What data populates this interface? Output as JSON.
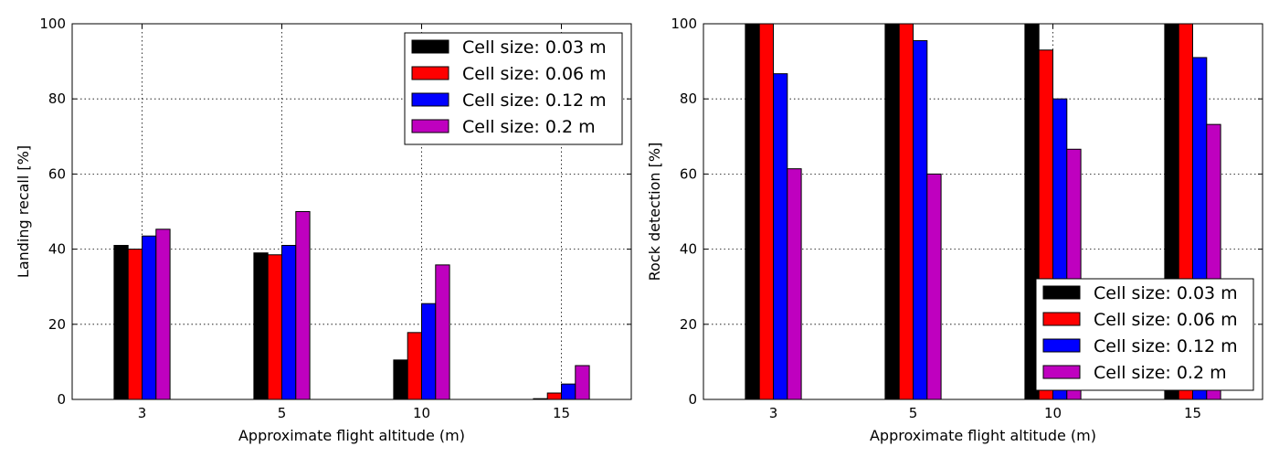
{
  "chart_data": [
    {
      "type": "bar",
      "title": "",
      "xlabel": "Approximate flight altitude (m)",
      "ylabel": "Landing recall [%]",
      "categories": [
        "3",
        "5",
        "10",
        "15"
      ],
      "ylim": [
        0,
        100
      ],
      "yticks": [
        "0",
        "20",
        "40",
        "60",
        "80",
        "100"
      ],
      "grid": true,
      "legend_position": "top-right",
      "series": [
        {
          "name": "Cell size: 0.03 m",
          "color": "#000000",
          "values": [
            41,
            39,
            10.5,
            0.2
          ]
        },
        {
          "name": "Cell size: 0.06 m",
          "color": "#ff0000",
          "values": [
            40,
            38.5,
            17.8,
            1.7
          ]
        },
        {
          "name": "Cell size: 0.12 m",
          "color": "#0000ff",
          "values": [
            43.5,
            41,
            25.5,
            4.1
          ]
        },
        {
          "name": "Cell size: 0.2 m",
          "color": "#bf00bf",
          "values": [
            45.3,
            50,
            35.8,
            9
          ]
        }
      ]
    },
    {
      "type": "bar",
      "title": "",
      "xlabel": "Approximate flight altitude (m)",
      "ylabel": "Rock detection [%]",
      "categories": [
        "3",
        "5",
        "10",
        "15"
      ],
      "ylim": [
        0,
        100
      ],
      "yticks": [
        "0",
        "20",
        "40",
        "60",
        "80",
        "100"
      ],
      "grid": true,
      "legend_position": "bottom-right",
      "series": [
        {
          "name": "Cell size: 0.03 m",
          "color": "#000000",
          "values": [
            100,
            100,
            100,
            100
          ]
        },
        {
          "name": "Cell size: 0.06 m",
          "color": "#ff0000",
          "values": [
            100,
            100,
            93,
            100
          ]
        },
        {
          "name": "Cell size: 0.12 m",
          "color": "#0000ff",
          "values": [
            86.7,
            95.5,
            80,
            91
          ]
        },
        {
          "name": "Cell size: 0.2 m",
          "color": "#bf00bf",
          "values": [
            61.4,
            60,
            66.6,
            73.2
          ]
        }
      ]
    }
  ]
}
